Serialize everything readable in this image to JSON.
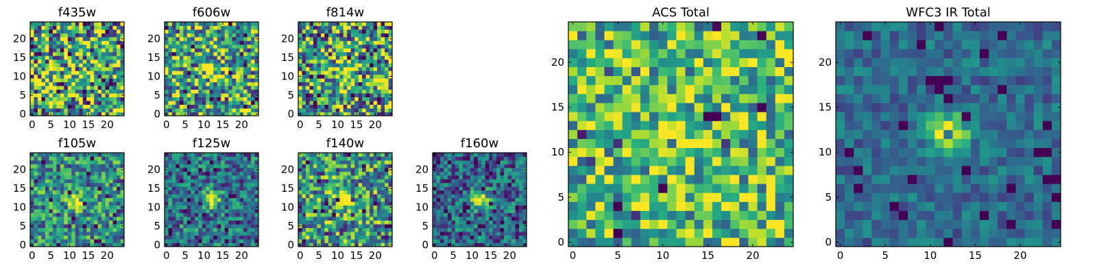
{
  "chart_data": [
    {
      "type": "heatmap",
      "title": "f435w",
      "seed": 11,
      "colormap": "viridis",
      "center_peak": 0.05,
      "noise": 0.55,
      "base": 0.62,
      "dark_spots": 0.06,
      "pixel_grid": 25,
      "xticks": [
        0,
        5,
        10,
        15,
        20
      ],
      "yticks": [
        0,
        5,
        10,
        15,
        20
      ],
      "xlim": [
        0,
        25
      ],
      "ylim": [
        0,
        25
      ]
    },
    {
      "type": "heatmap",
      "title": "f606w",
      "seed": 22,
      "colormap": "viridis",
      "center_peak": 0.35,
      "noise": 0.45,
      "base": 0.6,
      "dark_spots": 0.05,
      "pixel_grid": 25,
      "xticks": [
        0,
        5,
        10,
        15,
        20
      ],
      "yticks": [
        0,
        5,
        10,
        15,
        20
      ],
      "xlim": [
        0,
        25
      ],
      "ylim": [
        0,
        25
      ]
    },
    {
      "type": "heatmap",
      "title": "f814w",
      "seed": 33,
      "colormap": "viridis",
      "center_peak": 0.4,
      "noise": 0.5,
      "base": 0.58,
      "dark_spots": 0.06,
      "pixel_grid": 25,
      "xticks": [
        0,
        5,
        10,
        15,
        20
      ],
      "yticks": [
        0,
        5,
        10,
        15,
        20
      ],
      "xlim": [
        0,
        25
      ],
      "ylim": [
        0,
        25
      ]
    },
    {
      "type": "heatmap",
      "title": "f105w",
      "seed": 44,
      "colormap": "viridis",
      "center_peak": 0.55,
      "noise": 0.35,
      "base": 0.5,
      "dark_spots": 0.04,
      "pixel_grid": 25,
      "xticks": [
        0,
        5,
        10,
        15,
        20
      ],
      "yticks": [
        0,
        5,
        10,
        15,
        20
      ],
      "xlim": [
        0,
        25
      ],
      "ylim": [
        0,
        25
      ]
    },
    {
      "type": "heatmap",
      "title": "f125w",
      "seed": 55,
      "colormap": "viridis",
      "center_peak": 0.6,
      "noise": 0.3,
      "base": 0.4,
      "dark_spots": 0.05,
      "pixel_grid": 25,
      "xticks": [
        0,
        5,
        10,
        15,
        20
      ],
      "yticks": [
        0,
        5,
        10,
        15,
        20
      ],
      "xlim": [
        0,
        25
      ],
      "ylim": [
        0,
        25
      ]
    },
    {
      "type": "heatmap",
      "title": "f140w",
      "seed": 66,
      "colormap": "viridis",
      "center_peak": 0.45,
      "noise": 0.42,
      "base": 0.55,
      "dark_spots": 0.05,
      "pixel_grid": 25,
      "xticks": [
        0,
        5,
        10,
        15,
        20
      ],
      "yticks": [
        0,
        5,
        10,
        15,
        20
      ],
      "xlim": [
        0,
        25
      ],
      "ylim": [
        0,
        25
      ]
    },
    {
      "type": "heatmap",
      "title": "f160w",
      "seed": 77,
      "colormap": "viridis",
      "center_peak": 0.62,
      "noise": 0.3,
      "base": 0.35,
      "dark_spots": 0.06,
      "pixel_grid": 25,
      "xticks": [
        0,
        5,
        10,
        15,
        20
      ],
      "yticks": [
        0,
        5,
        10,
        15,
        20
      ],
      "xlim": [
        0,
        25
      ],
      "ylim": [
        0,
        25
      ]
    },
    {
      "type": "heatmap",
      "title": "ACS Total",
      "seed": 88,
      "colormap": "viridis",
      "center_peak": 0.3,
      "noise": 0.38,
      "base": 0.68,
      "dark_spots": 0.04,
      "pixel_grid": 25,
      "xticks": [
        0,
        5,
        10,
        15,
        20
      ],
      "yticks": [
        0,
        5,
        10,
        15,
        20
      ],
      "xlim": [
        0,
        25
      ],
      "ylim": [
        0,
        25
      ]
    },
    {
      "type": "heatmap",
      "title": "WFC3 IR Total",
      "seed": 99,
      "colormap": "viridis",
      "center_peak": 0.62,
      "noise": 0.16,
      "base": 0.36,
      "dark_spots": 0.05,
      "pixel_grid": 25,
      "xticks": [
        0,
        5,
        10,
        15,
        20
      ],
      "yticks": [
        0,
        5,
        10,
        15,
        20
      ],
      "xlim": [
        0,
        25
      ],
      "ylim": [
        0,
        25
      ]
    }
  ]
}
